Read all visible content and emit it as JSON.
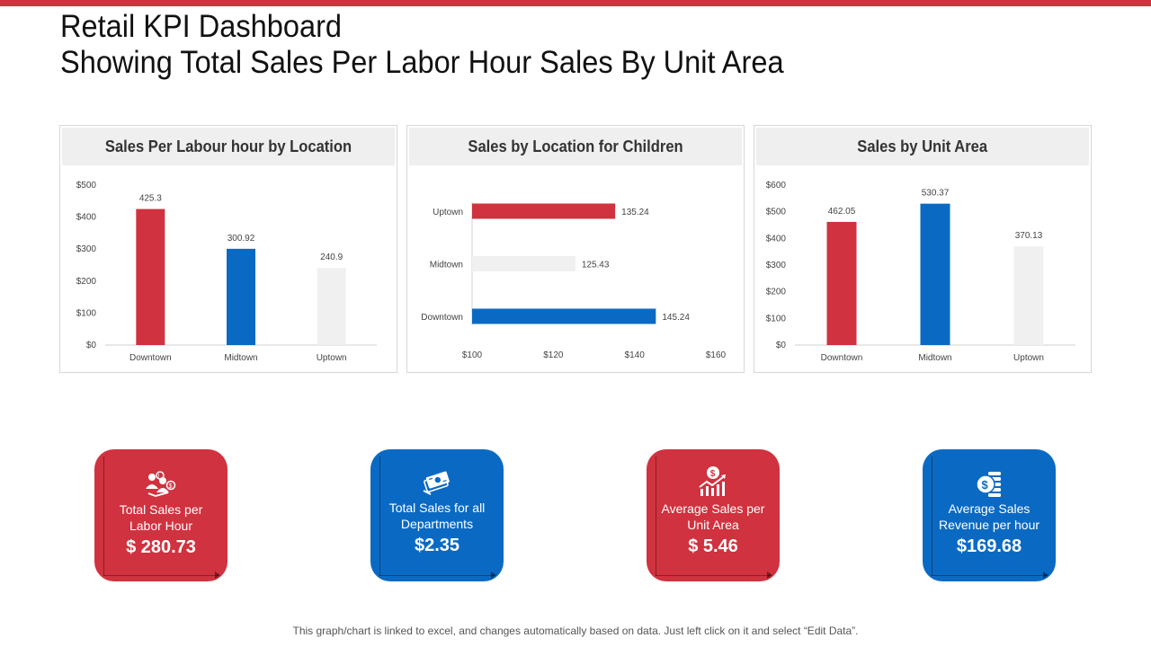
{
  "header": {
    "title_line1": "Retail KPI Dashboard",
    "title_line2": "Showing Total Sales Per Labor Hour Sales By Unit Area",
    "accent_color": "#d0323f"
  },
  "chart_data": [
    {
      "type": "bar",
      "title": "Sales Per Labour hour by Location",
      "categories": [
        "Downtown",
        "Midtown",
        "Uptown"
      ],
      "values": [
        425.3,
        300.92,
        240.9
      ],
      "value_labels": [
        "425.3",
        "300.92",
        "240.9"
      ],
      "colors": [
        "#d0323f",
        "#0a6ac3",
        "#f0f0f0"
      ],
      "ylim": [
        0,
        500
      ],
      "yticks": [
        0,
        100,
        200,
        300,
        400,
        500
      ],
      "ytick_labels": [
        "$0",
        "$100",
        "$200",
        "$300",
        "$400",
        "$500"
      ],
      "xlabel": "",
      "ylabel": ""
    },
    {
      "type": "bar",
      "orientation": "horizontal",
      "title": "Sales by Location for Children",
      "categories": [
        "Uptown",
        "Midtown",
        "Downtown"
      ],
      "values": [
        135.24,
        125.43,
        145.24
      ],
      "value_labels": [
        "135.24",
        "125.43",
        "145.24"
      ],
      "colors": [
        "#d0323f",
        "#f0f0f0",
        "#0a6ac3"
      ],
      "xlim": [
        100,
        160
      ],
      "xticks": [
        100,
        120,
        140,
        160
      ],
      "xtick_labels": [
        "$100",
        "$120",
        "$140",
        "$160"
      ],
      "xlabel": "",
      "ylabel": ""
    },
    {
      "type": "bar",
      "title": "Sales by Unit Area",
      "categories": [
        "Downtown",
        "Midtown",
        "Uptown"
      ],
      "values": [
        462.05,
        530.37,
        370.13
      ],
      "value_labels": [
        "462.05",
        "530.37",
        "370.13"
      ],
      "colors": [
        "#d0323f",
        "#0a6ac3",
        "#f0f0f0"
      ],
      "ylim": [
        0,
        600
      ],
      "yticks": [
        0,
        100,
        200,
        300,
        400,
        500,
        600
      ],
      "ytick_labels": [
        "$0",
        "$100",
        "$200",
        "$300",
        "$400",
        "$500",
        "$600"
      ],
      "xlabel": "",
      "ylabel": ""
    }
  ],
  "kpis": [
    {
      "label": "Total Sales per Labor Hour",
      "value": "$ 280.73",
      "icon": "labor-sales-icon",
      "color": "#d0323f"
    },
    {
      "label": "Total Sales for all Departments",
      "value": "$2.35",
      "icon": "money-cash-icon",
      "color": "#0a6ac3"
    },
    {
      "label": "Average Sales per Unit Area",
      "value": "$ 5.46",
      "icon": "sales-growth-icon",
      "color": "#d0323f"
    },
    {
      "label": "Average Sales Revenue per hour",
      "value": "$169.68",
      "icon": "coin-stack-icon",
      "color": "#0a6ac3"
    }
  ],
  "footer": {
    "note": "This graph/chart is linked to excel,  and changes automatically based on data. Just left click on it and select “Edit Data”."
  }
}
